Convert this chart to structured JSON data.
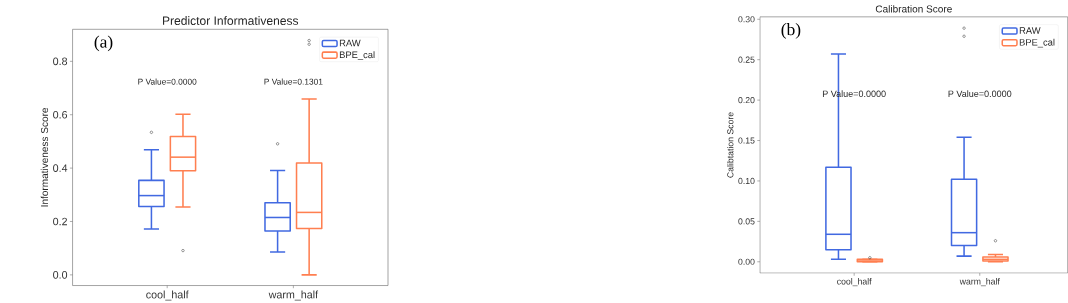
{
  "chart_data": [
    {
      "type": "box",
      "title": "Predictor Informativeness",
      "ylabel": "Informativeness Score",
      "categories": [
        "cool_half",
        "warm_half"
      ],
      "series": [
        {
          "name": "RAW",
          "color": "#4169e1",
          "boxes": [
            {
              "low": 0.172,
              "q1": 0.256,
              "median": 0.297,
              "q3": 0.354,
              "high": 0.469,
              "outliers": [
                0.534
              ]
            },
            {
              "low": 0.086,
              "q1": 0.164,
              "median": 0.215,
              "q3": 0.27,
              "high": 0.391,
              "outliers": [
                0.491
              ]
            }
          ]
        },
        {
          "name": "BPE_cal",
          "color": "#ff7f50",
          "boxes": [
            {
              "low": 0.254,
              "q1": 0.39,
              "median": 0.441,
              "q3": 0.518,
              "high": 0.602,
              "outliers": [
                0.091
              ]
            },
            {
              "low": 0.0,
              "q1": 0.174,
              "median": 0.234,
              "q3": 0.419,
              "high": 0.659,
              "outliers": [
                0.864,
                0.878
              ]
            }
          ]
        }
      ],
      "ylim": [
        -0.04,
        0.92
      ],
      "yticks": [
        {
          "value": 0,
          "label": "0.0"
        },
        0.2,
        0.4,
        0.6,
        0.8
      ],
      "legend": "top right",
      "marker": "circle",
      "annotations": [
        "(a)",
        "P Value=0.0000",
        "P Value=0.1301"
      ]
    },
    {
      "type": "box",
      "title": "Calibration Score",
      "ylabel": "Calibtation Score",
      "categories": [
        "cool_half",
        "warm_half"
      ],
      "series": [
        {
          "name": "RAW",
          "color": "#4169e1",
          "boxes": [
            {
              "low": 0.003,
              "q1": 0.015,
              "median": 0.034,
              "q3": 0.117,
              "high": 0.257
            },
            {
              "low": 0.007,
              "q1": 0.02,
              "median": 0.036,
              "q3": 0.102,
              "high": 0.154,
              "outliers": [
                0.279,
                0.289
              ]
            }
          ]
        },
        {
          "name": "BPE_cal",
          "color": "#ff7f50",
          "boxes": [
            {
              "low": 0.0,
              "q1": 0.0,
              "median": 0.001,
              "q3": 0.003,
              "high": 0.003,
              "outliers": [
                0.005
              ]
            },
            {
              "low": 0.0,
              "q1": 0.001,
              "median": 0.003,
              "q3": 0.006,
              "high": 0.009,
              "outliers": [
                0.026
              ]
            }
          ]
        }
      ],
      "ylim": [
        -0.014,
        0.303
      ],
      "yticks": [
        {
          "value": 0,
          "label": "0.00"
        },
        0.05,
        {
          "value": 0.1,
          "label": "0.10"
        },
        0.15,
        {
          "value": 0.2,
          "label": "0.20"
        },
        0.25,
        {
          "value": 0.3,
          "label": "0.30"
        }
      ],
      "legend": "top right",
      "marker": "circle",
      "annotations": [
        "(b)",
        "P Value=0.0000",
        "P Value=0.0000"
      ]
    }
  ]
}
